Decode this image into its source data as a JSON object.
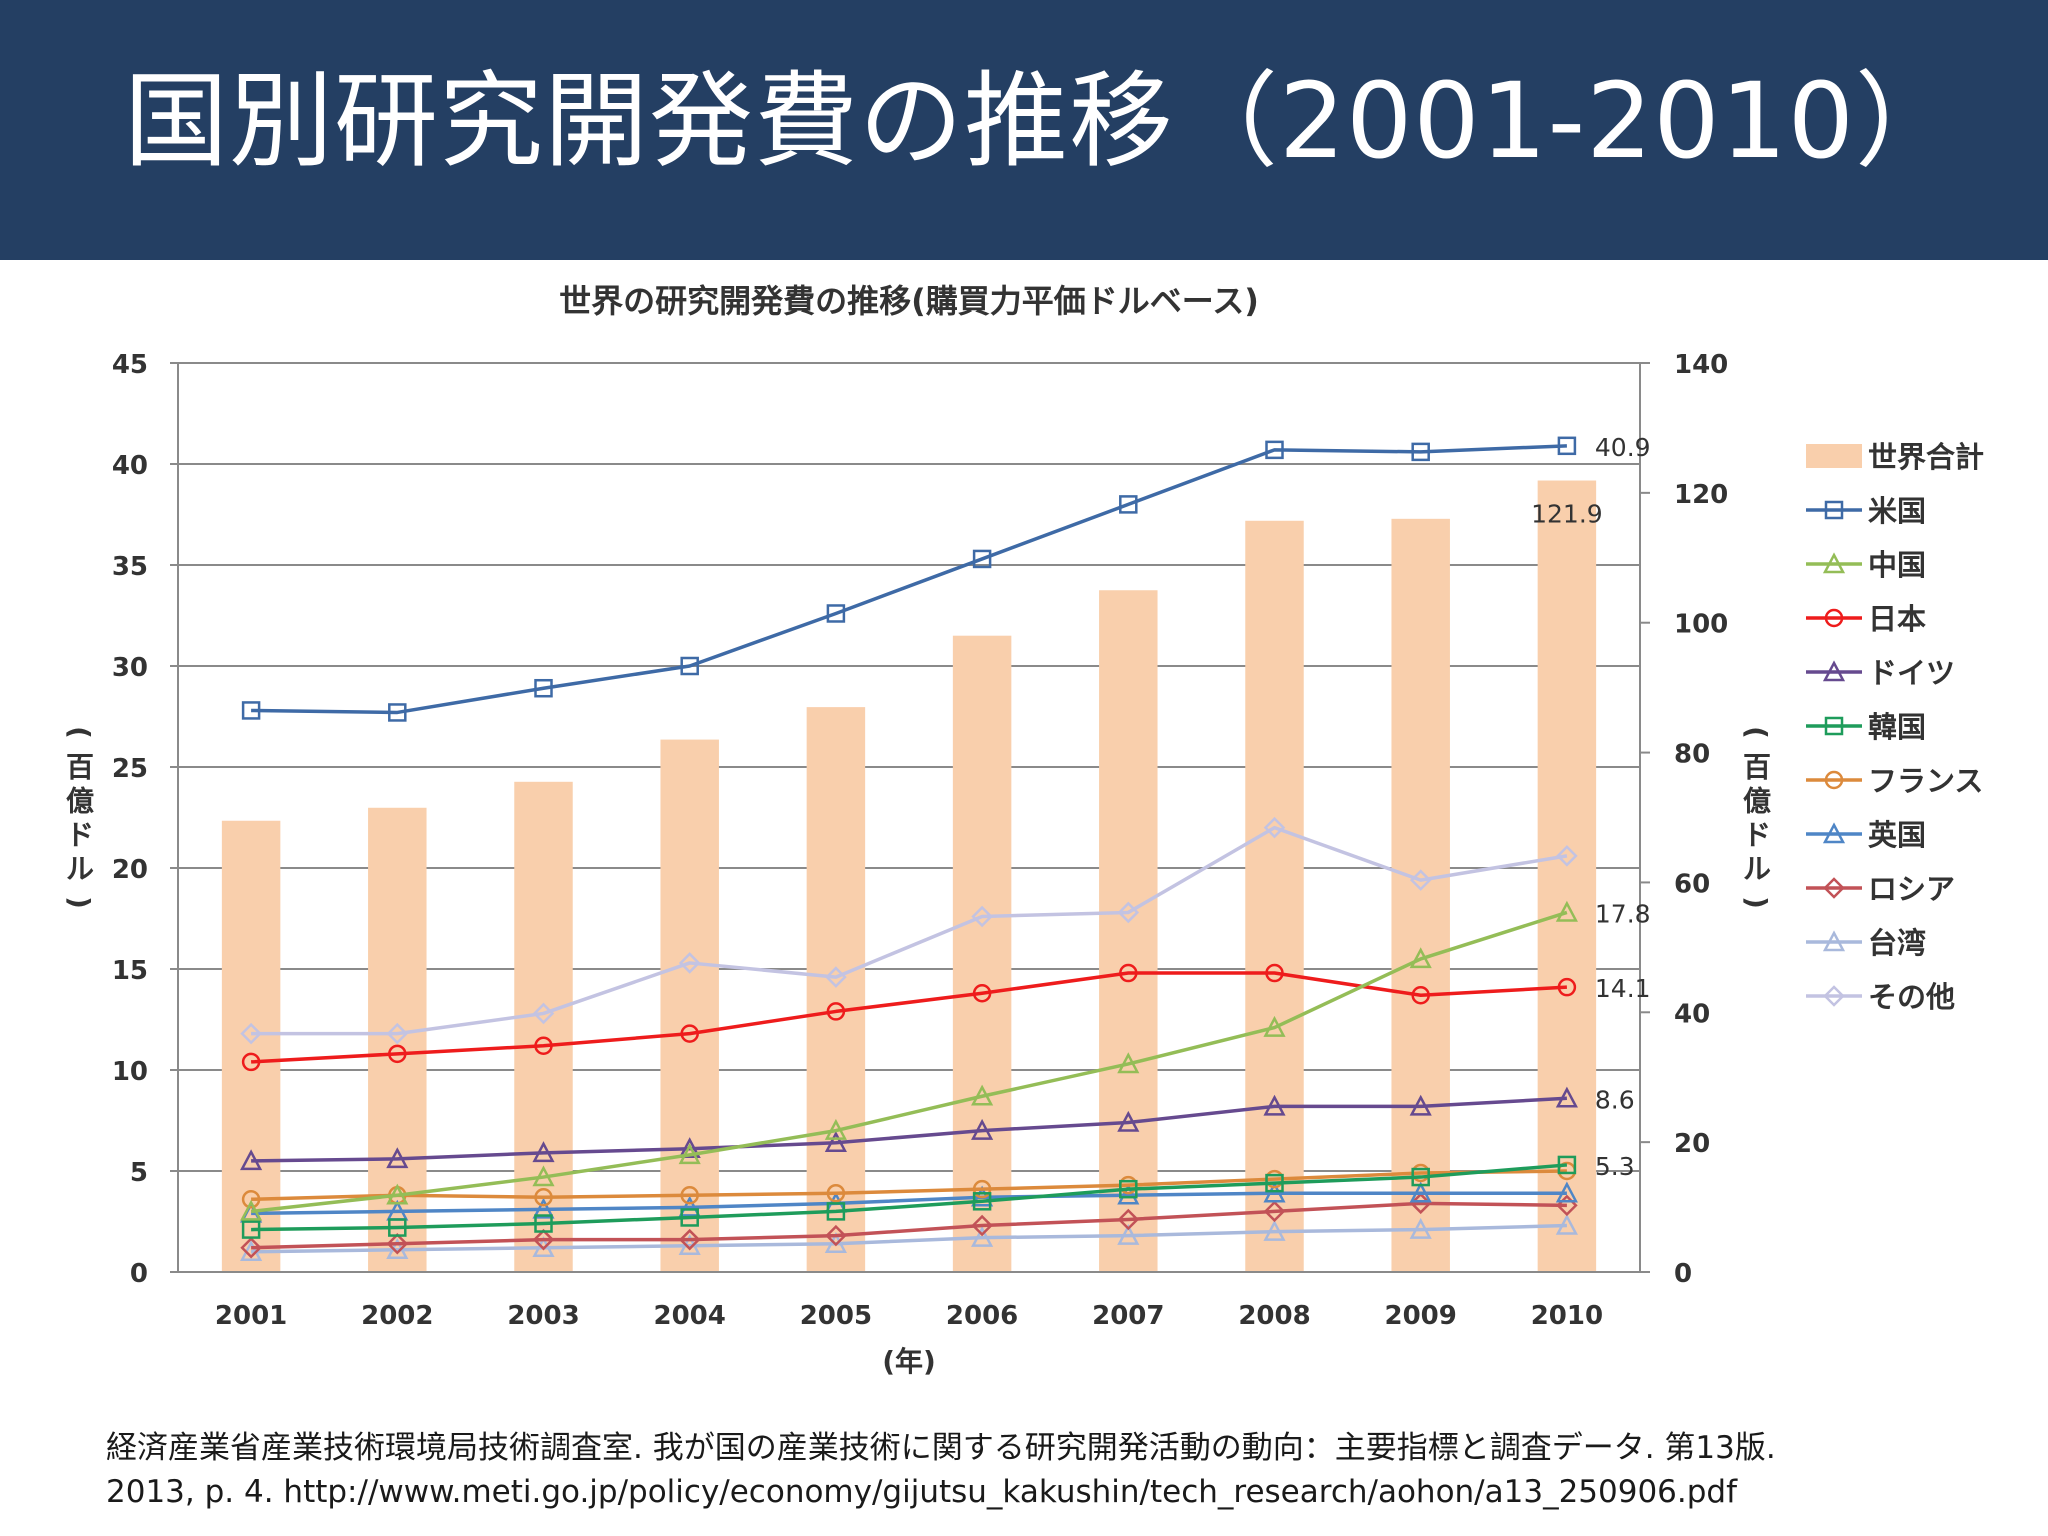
{
  "header": {
    "title": "国別研究開発費の推移（2001-2010）"
  },
  "caption": {
    "line1": "経済産業省産業技術環境局技術調査室. 我が国の産業技術に関する研究開発活動の動向：主要指標と調査データ. 第13版.",
    "line2": "2013, p. 4. http://www.meti.go.jp/policy/economy/gijutsu_kakushin/tech_research/aohon/a13_250906.pdf"
  },
  "chart_data": {
    "type": "bar",
    "title": "世界の研究開発費の推移(購買力平価ドルベース)",
    "xlabel": "(年)",
    "ylabel_left": "(百億ドル)",
    "ylabel_right": "(百億ドル)",
    "categories": [
      "2001",
      "2002",
      "2003",
      "2004",
      "2005",
      "2006",
      "2007",
      "2008",
      "2009",
      "2010"
    ],
    "ylim_left": [
      0,
      45
    ],
    "ylim_right": [
      0,
      140
    ],
    "yticks_left": [
      "0",
      "5",
      "10",
      "15",
      "20",
      "25",
      "30",
      "35",
      "40",
      "45"
    ],
    "yticks_right": [
      "0",
      "20",
      "40",
      "60",
      "80",
      "100",
      "120",
      "140"
    ],
    "grid": true,
    "legend_position": "right",
    "bar_series": {
      "name": "世界合計",
      "axis": "right",
      "color": "#f9cfac",
      "values": [
        69.5,
        71.5,
        75.5,
        82.0,
        87.0,
        98.0,
        105.0,
        115.7,
        116.0,
        121.9
      ],
      "end_label": "121.9"
    },
    "series": [
      {
        "name": "米国",
        "marker": "square",
        "color": "#3e6aa6",
        "values": [
          27.8,
          27.7,
          28.9,
          30.0,
          32.6,
          35.3,
          38.0,
          40.7,
          40.6,
          40.9
        ],
        "end_label": "40.9"
      },
      {
        "name": "中国",
        "marker": "triangle",
        "color": "#94bd57",
        "values": [
          3.0,
          3.8,
          4.7,
          5.8,
          7.0,
          8.7,
          10.3,
          12.1,
          15.5,
          17.8
        ],
        "end_label": "17.8"
      },
      {
        "name": "日本",
        "marker": "circle",
        "color": "#ee1c1c",
        "values": [
          10.4,
          10.8,
          11.2,
          11.8,
          12.9,
          13.8,
          14.8,
          14.8,
          13.7,
          14.1
        ],
        "end_label": "14.1"
      },
      {
        "name": "ドイツ",
        "marker": "triangle",
        "color": "#664a8f",
        "values": [
          5.5,
          5.6,
          5.9,
          6.1,
          6.4,
          7.0,
          7.4,
          8.2,
          8.2,
          8.6
        ],
        "end_label": "8.6"
      },
      {
        "name": "韓国",
        "marker": "square",
        "color": "#1e9c5b",
        "values": [
          2.1,
          2.2,
          2.4,
          2.7,
          3.0,
          3.5,
          4.1,
          4.4,
          4.7,
          5.3
        ],
        "end_label": "5.3"
      },
      {
        "name": "フランス",
        "marker": "circle",
        "color": "#dc8a3c",
        "values": [
          3.6,
          3.8,
          3.7,
          3.8,
          3.9,
          4.1,
          4.3,
          4.6,
          4.9,
          5.0
        ],
        "end_label": ""
      },
      {
        "name": "英国",
        "marker": "triangle",
        "color": "#4f86c6",
        "values": [
          2.9,
          3.0,
          3.1,
          3.2,
          3.4,
          3.7,
          3.8,
          3.9,
          3.9,
          3.9
        ],
        "end_label": ""
      },
      {
        "name": "ロシア",
        "marker": "diamond",
        "color": "#c25257",
        "values": [
          1.2,
          1.4,
          1.6,
          1.6,
          1.8,
          2.3,
          2.6,
          3.0,
          3.4,
          3.3
        ],
        "end_label": ""
      },
      {
        "name": "台湾",
        "marker": "triangle",
        "color": "#a9b9dc",
        "values": [
          1.0,
          1.1,
          1.2,
          1.3,
          1.4,
          1.7,
          1.8,
          2.0,
          2.1,
          2.3
        ],
        "end_label": ""
      },
      {
        "name": "その他",
        "marker": "diamond",
        "color": "#c3c3e2",
        "values": [
          11.8,
          11.8,
          12.8,
          15.3,
          14.6,
          17.6,
          17.8,
          22.0,
          19.4,
          20.6
        ],
        "end_label": ""
      }
    ]
  }
}
